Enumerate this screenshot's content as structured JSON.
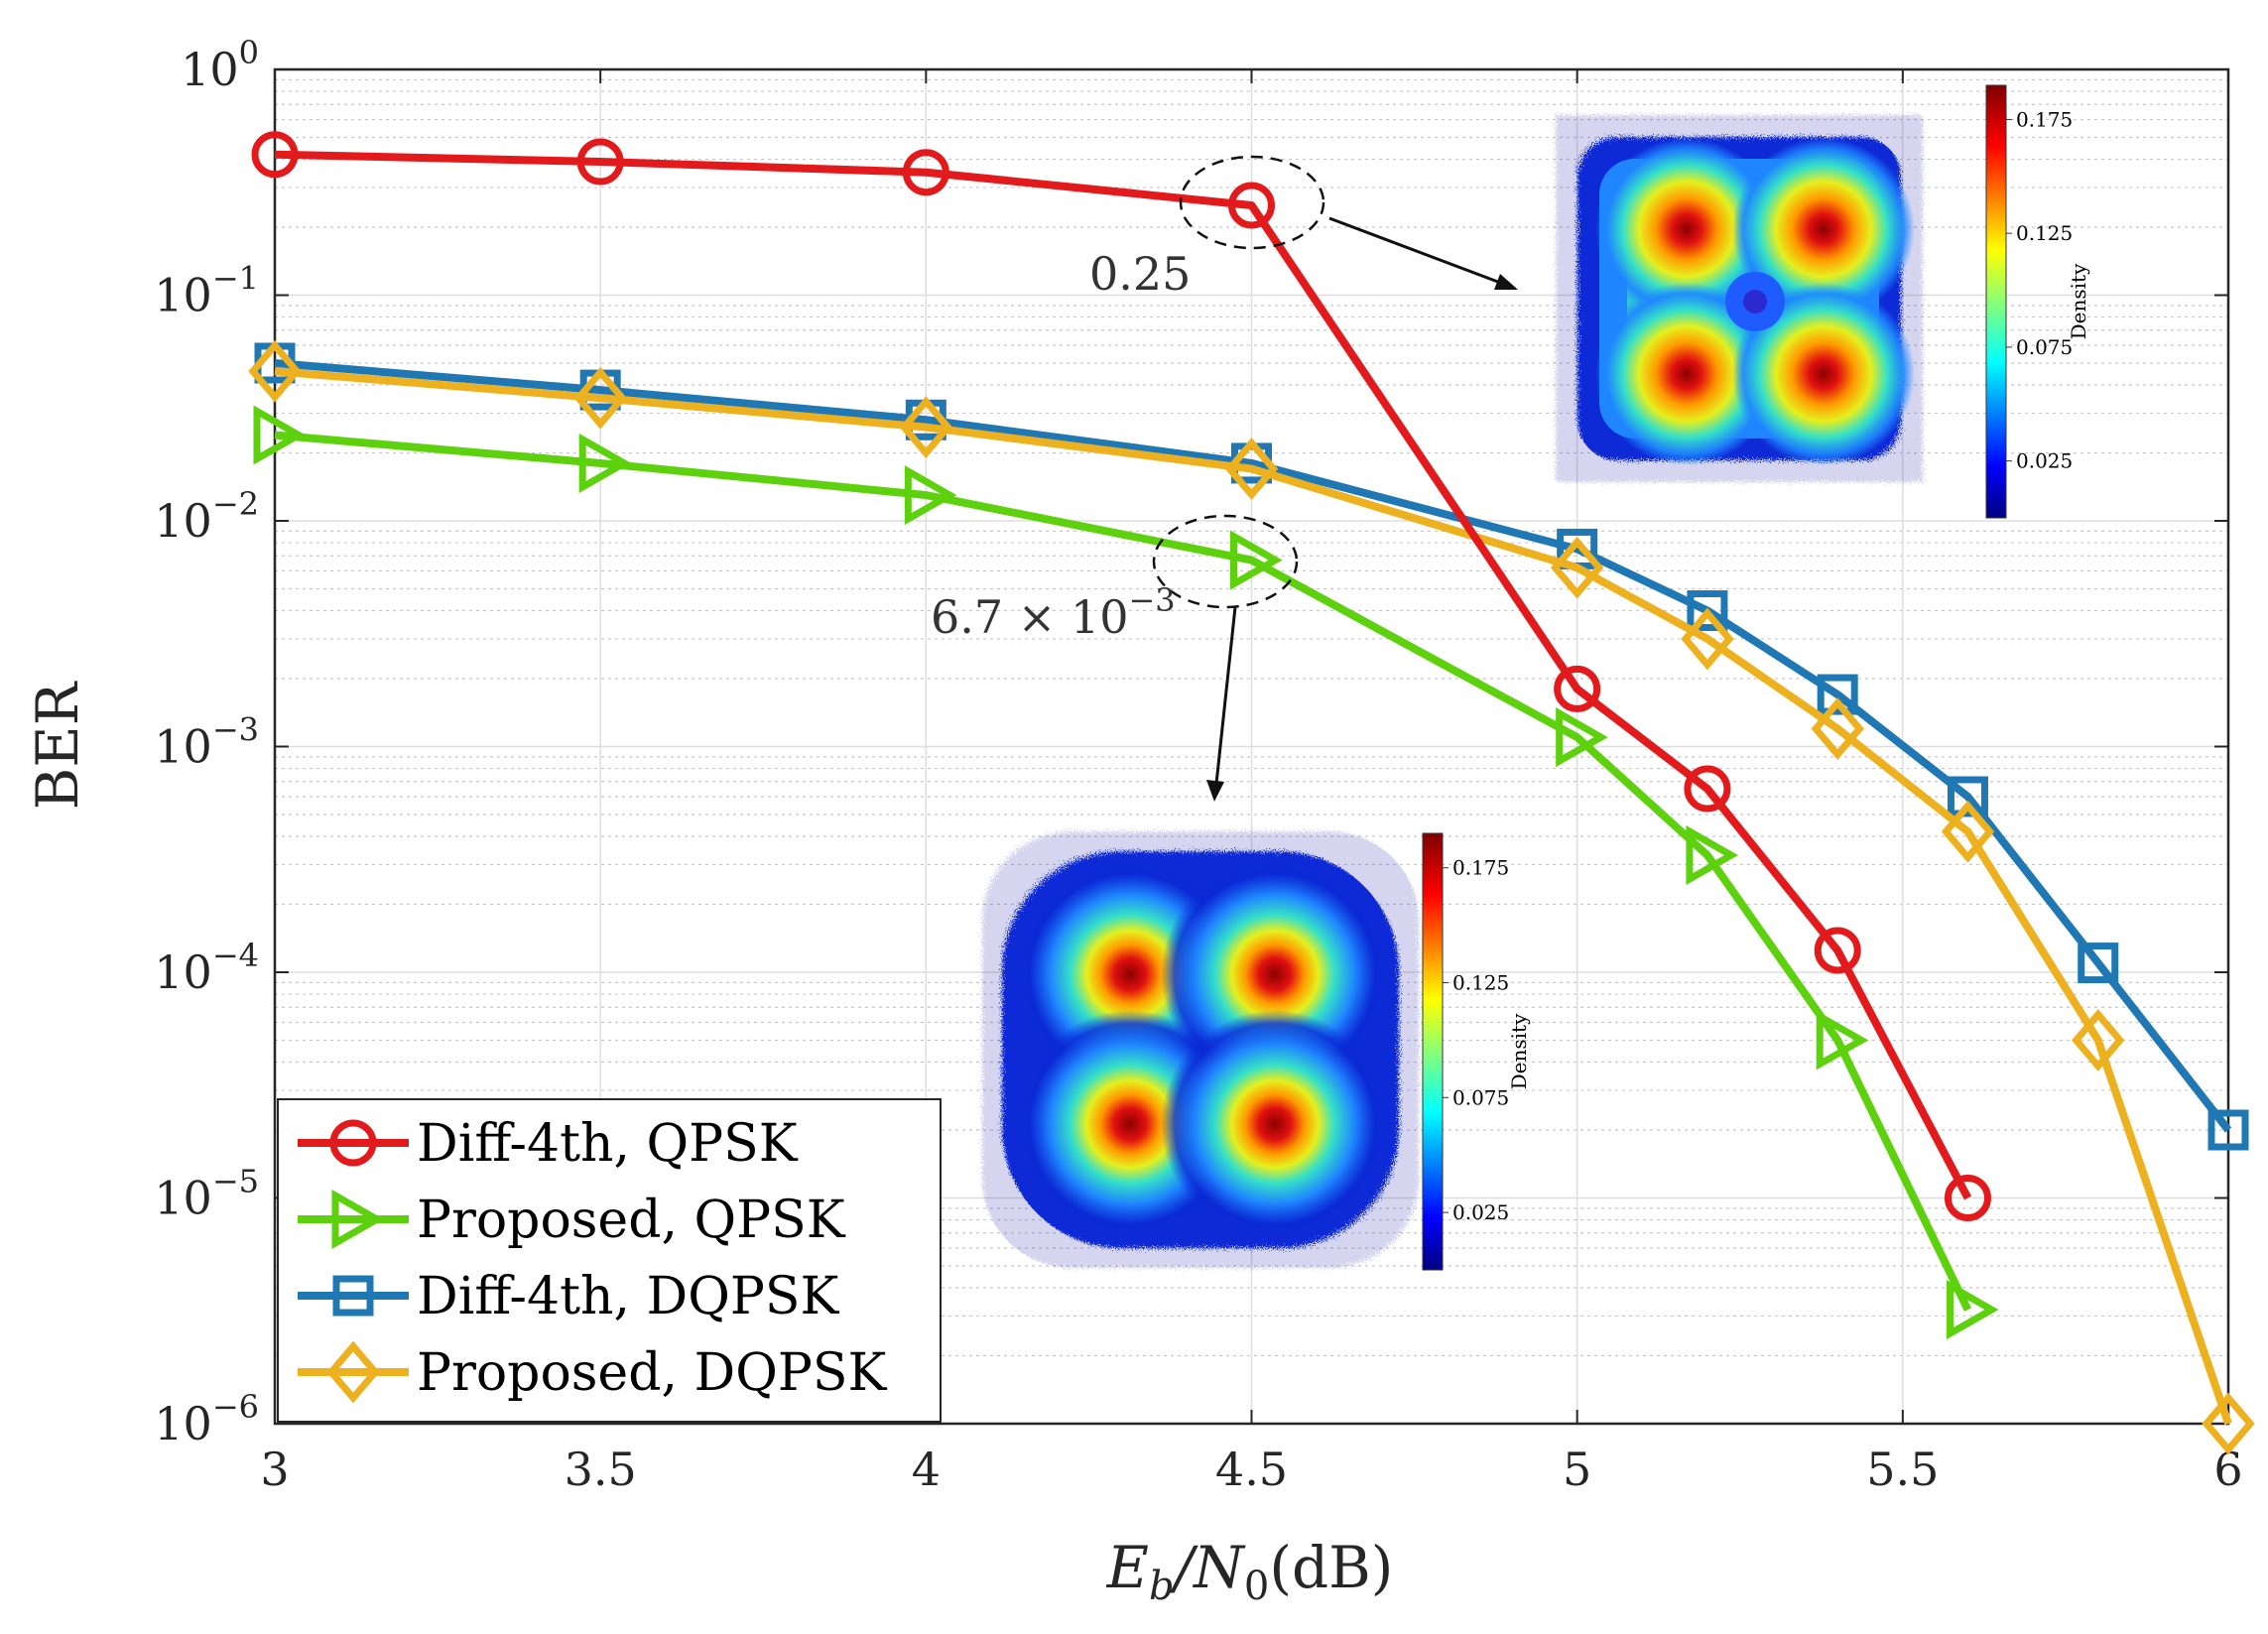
{
  "chart_data": {
    "type": "line",
    "title": "",
    "xlabel": "E_b/N_0(dB)",
    "ylabel": "BER",
    "x_scale": "linear",
    "y_scale": "log",
    "xlim": [
      3,
      6
    ],
    "ylim": [
      1e-06,
      1
    ],
    "x_ticks": [
      {
        "value": 3,
        "label": "3"
      },
      {
        "value": 3.5,
        "label": "3.5"
      },
      {
        "value": 4,
        "label": "4"
      },
      {
        "value": 4.5,
        "label": "4.5"
      },
      {
        "value": 5,
        "label": "5"
      },
      {
        "value": 5.5,
        "label": "5.5"
      },
      {
        "value": 6,
        "label": "6"
      }
    ],
    "y_ticks": [
      {
        "value": 1,
        "base": "10",
        "exp": "0"
      },
      {
        "value": 0.1,
        "base": "10",
        "exp": "−1"
      },
      {
        "value": 0.01,
        "base": "10",
        "exp": "−2"
      },
      {
        "value": 0.001,
        "base": "10",
        "exp": "−3"
      },
      {
        "value": 0.0001,
        "base": "10",
        "exp": "−4"
      },
      {
        "value": 1e-05,
        "base": "10",
        "exp": "−5"
      },
      {
        "value": 1e-06,
        "base": "10",
        "exp": "−6"
      }
    ],
    "grid": true,
    "minor_grid": true,
    "legend_position": "bottom-left",
    "series": [
      {
        "name": "Diff-4th, QPSK",
        "color": "#e31a1c",
        "marker": "circle",
        "x": [
          3,
          3.5,
          4,
          4.5,
          5,
          5.2,
          5.4,
          5.6
        ],
        "y": [
          0.42,
          0.39,
          0.35,
          0.25,
          0.0018,
          0.00065,
          0.000125,
          1e-05
        ]
      },
      {
        "name": "Proposed, QPSK",
        "color": "#5ed10e",
        "marker": "triangle-right",
        "x": [
          3,
          3.5,
          4,
          4.5,
          5,
          5.2,
          5.4,
          5.6
        ],
        "y": [
          0.024,
          0.018,
          0.013,
          0.0067,
          0.0011,
          0.00033,
          5e-05,
          3.2e-06
        ]
      },
      {
        "name": "Diff-4th, DQPSK",
        "color": "#1f78b4",
        "marker": "square",
        "x": [
          3,
          3.5,
          4,
          4.5,
          5,
          5.2,
          5.4,
          5.6,
          5.8,
          6
        ],
        "y": [
          0.05,
          0.038,
          0.028,
          0.018,
          0.0075,
          0.004,
          0.0017,
          0.0006,
          0.00011,
          2e-05
        ]
      },
      {
        "name": "Proposed, DQPSK",
        "color": "#edb120",
        "marker": "diamond",
        "x": [
          3,
          3.5,
          4,
          4.5,
          5,
          5.2,
          5.4,
          5.6,
          5.8,
          6
        ],
        "y": [
          0.046,
          0.035,
          0.026,
          0.017,
          0.0062,
          0.003,
          0.0012,
          0.00042,
          5e-05,
          1e-06
        ]
      }
    ],
    "annotations": [
      {
        "text": "0.25",
        "point_x": 4.5,
        "point_y": 0.25
      },
      {
        "text_main": "6.7 × 10",
        "text_exp": "−3",
        "point_x": 4.5,
        "point_y": 0.0067
      }
    ],
    "insets": [
      {
        "kind": "constellation-density",
        "colorbar_label": "Density",
        "colorbar_ticks": [
          "0.175",
          "0.125",
          "0.075",
          "0.025"
        ]
      },
      {
        "kind": "constellation-density",
        "colorbar_label": "Density",
        "colorbar_ticks": [
          "0.175",
          "0.125",
          "0.075",
          "0.025"
        ]
      }
    ]
  }
}
